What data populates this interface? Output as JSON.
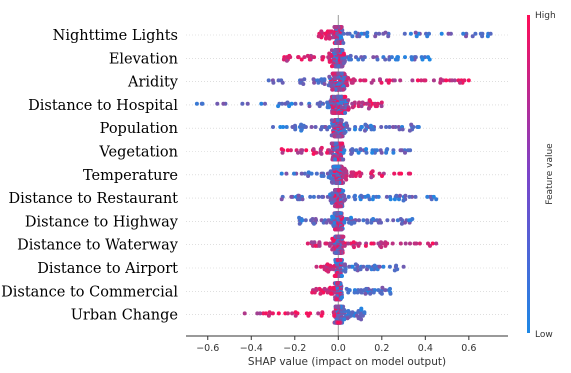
{
  "chart_data": {
    "type": "scatter",
    "subtype": "shap-beeswarm",
    "xlabel": "SHAP value (impact on model output)",
    "xlim": [
      -0.7,
      0.78
    ],
    "xticks": [
      -0.6,
      -0.4,
      -0.2,
      0.0,
      0.2,
      0.4,
      0.6
    ],
    "xtick_labels": [
      "−0.6",
      "−0.4",
      "−0.2",
      "0.0",
      "0.2",
      "0.4",
      "0.6"
    ],
    "zero_line": 0.0,
    "colorbar": {
      "title": "Feature value",
      "high_label": "High",
      "low_label": "Low",
      "low_color": "#1e88e5",
      "high_color": "#ff0d57"
    },
    "features": [
      {
        "name": "Nighttime Lights",
        "min": -0.09,
        "max": 0.7,
        "neg_high": true,
        "pos_high": false,
        "spread": 0.08
      },
      {
        "name": "Elevation",
        "min": -0.25,
        "max": 0.42,
        "neg_high": true,
        "pos_high": false,
        "spread": 0.14
      },
      {
        "name": "Aridity",
        "min": -0.32,
        "max": 0.6,
        "neg_high": false,
        "pos_high": true,
        "spread": 0.18
      },
      {
        "name": "Distance to Hospital",
        "min": -0.65,
        "max": 0.2,
        "neg_high": false,
        "pos_high": true,
        "spread": 0.2
      },
      {
        "name": "Population",
        "min": -0.3,
        "max": 0.37,
        "neg_high": false,
        "pos_high": false,
        "spread": 0.12
      },
      {
        "name": "Vegetation",
        "min": -0.26,
        "max": 0.33,
        "neg_high": true,
        "pos_high": false,
        "spread": 0.12
      },
      {
        "name": "Temperature",
        "min": -0.26,
        "max": 0.33,
        "neg_high": false,
        "pos_high": true,
        "spread": 0.12
      },
      {
        "name": "Distance to Restaurant",
        "min": -0.26,
        "max": 0.45,
        "neg_high": false,
        "pos_high": false,
        "spread": 0.1
      },
      {
        "name": "Distance to Highway",
        "min": -0.18,
        "max": 0.34,
        "neg_high": false,
        "pos_high": false,
        "spread": 0.1
      },
      {
        "name": "Distance to Waterway",
        "min": -0.14,
        "max": 0.45,
        "neg_high": true,
        "pos_high": true,
        "spread": 0.1
      },
      {
        "name": "Distance to Airport",
        "min": -0.1,
        "max": 0.3,
        "neg_high": true,
        "pos_high": false,
        "spread": 0.07
      },
      {
        "name": "Distance to Commercial",
        "min": -0.12,
        "max": 0.24,
        "neg_high": true,
        "pos_high": false,
        "spread": 0.07
      },
      {
        "name": "Urban Change",
        "min": -0.43,
        "max": 0.12,
        "neg_high": true,
        "pos_high": false,
        "spread": 0.08
      }
    ]
  }
}
